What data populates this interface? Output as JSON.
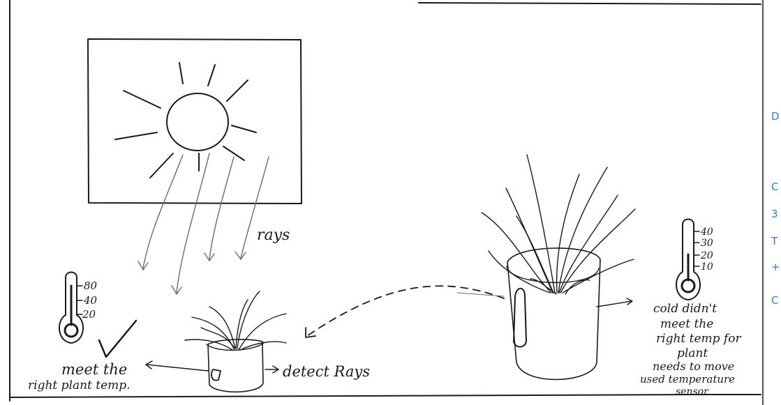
{
  "labels": {
    "rays": "rays",
    "left_thermometer_ticks": [
      "80",
      "40",
      "20"
    ],
    "meet_line1": "meet the",
    "meet_line2": "right plant temp.",
    "detect_rays": "detect Rays",
    "right_thermometer_ticks": [
      "40",
      "30",
      "20",
      "10"
    ],
    "note_lines": [
      "cold didn't",
      "meet the",
      "right temp for",
      "plant",
      "needs to move",
      "used temperature",
      "sensor"
    ]
  },
  "edge_marks": [
    "D",
    "C",
    "3",
    "T",
    "+",
    "C"
  ]
}
